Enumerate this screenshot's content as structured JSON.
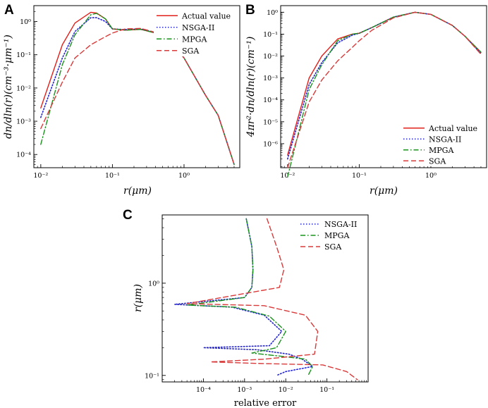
{
  "chart_data": [
    {
      "panel": "A",
      "type": "line",
      "xscale": "log",
      "yscale": "log",
      "xlim": [
        0.008,
        6
      ],
      "ylim": [
        4e-05,
        3
      ],
      "xlabel": "r(μm)",
      "ylabel": "dn/dln(r)(cm⁻³·μm⁻¹)",
      "xticks": [
        {
          "v": 0.01,
          "label": "10⁻²"
        },
        {
          "v": 0.1,
          "label": "10⁻¹"
        },
        {
          "v": 1,
          "label": "10⁰"
        }
      ],
      "yticks": [
        {
          "v": 0.0001,
          "label": "10⁻⁴"
        },
        {
          "v": 0.001,
          "label": "10⁻³"
        },
        {
          "v": 0.01,
          "label": "10⁻²"
        },
        {
          "v": 0.1,
          "label": "10⁻¹"
        },
        {
          "v": 1,
          "label": "10⁰"
        }
      ],
      "legend_position": "top-right",
      "series": [
        {
          "name": "Actual value",
          "color": "#e0201b",
          "dash": "solid",
          "x": [
            0.01,
            0.02,
            0.03,
            0.05,
            0.06,
            0.08,
            0.1,
            0.15,
            0.25,
            0.4,
            0.7,
            1.0,
            2.0,
            3.0,
            5.0
          ],
          "y": [
            0.0025,
            0.2,
            0.9,
            1.9,
            1.8,
            1.2,
            0.6,
            0.55,
            0.58,
            0.45,
            0.2,
            0.08,
            0.006,
            0.0015,
            5e-05
          ]
        },
        {
          "name": "NSGA-II",
          "color": "#2323d6",
          "dash": "dotted",
          "x": [
            0.01,
            0.02,
            0.03,
            0.05,
            0.06,
            0.08,
            0.1,
            0.15,
            0.25,
            0.4,
            0.7,
            1.0,
            2.0,
            3.0,
            5.0
          ],
          "y": [
            0.0013,
            0.08,
            0.5,
            1.3,
            1.3,
            1.0,
            0.6,
            0.57,
            0.6,
            0.46,
            0.2,
            0.08,
            0.006,
            0.0015,
            5e-05
          ]
        },
        {
          "name": "MPGA",
          "color": "#18921c",
          "dash": "dashdot",
          "x": [
            0.01,
            0.02,
            0.03,
            0.05,
            0.06,
            0.08,
            0.1,
            0.15,
            0.25,
            0.4,
            0.7,
            1.0,
            2.0,
            3.0,
            5.0
          ],
          "y": [
            0.0002,
            0.05,
            0.4,
            1.6,
            1.75,
            1.2,
            0.6,
            0.55,
            0.58,
            0.45,
            0.2,
            0.08,
            0.006,
            0.0015,
            5e-05
          ]
        },
        {
          "name": "SGA",
          "color": "#d83a3a",
          "dash": "dashed",
          "x": [
            0.01,
            0.02,
            0.03,
            0.05,
            0.07,
            0.1,
            0.15,
            0.25,
            0.4,
            0.7,
            1.0,
            2.0,
            3.0,
            5.0
          ],
          "y": [
            0.0006,
            0.015,
            0.08,
            0.2,
            0.3,
            0.45,
            0.6,
            0.62,
            0.47,
            0.2,
            0.08,
            0.006,
            0.0015,
            5e-05
          ]
        }
      ]
    },
    {
      "panel": "B",
      "type": "line",
      "xscale": "log",
      "yscale": "log",
      "xlim": [
        0.008,
        6
      ],
      "ylim": [
        8e-08,
        2
      ],
      "xlabel": "r(μm)",
      "ylabel": "4πr²·dn/dln(r)(cm⁻¹)",
      "xticks": [
        {
          "v": 0.01,
          "label": "10⁻²"
        },
        {
          "v": 0.1,
          "label": "10⁻¹"
        },
        {
          "v": 1,
          "label": "10⁰"
        }
      ],
      "yticks": [
        {
          "v": 1e-06,
          "label": "10⁻⁶"
        },
        {
          "v": 1e-05,
          "label": "10⁻⁵"
        },
        {
          "v": 0.0001,
          "label": "10⁻⁴"
        },
        {
          "v": 0.001,
          "label": "10⁻³"
        },
        {
          "v": 0.01,
          "label": "10⁻²"
        },
        {
          "v": 0.1,
          "label": "10⁻¹"
        },
        {
          "v": 1,
          "label": "10⁰"
        }
      ],
      "legend_position": "bottom-right",
      "series": [
        {
          "name": "Actual value",
          "color": "#e0201b",
          "dash": "solid",
          "x": [
            0.01,
            0.02,
            0.03,
            0.05,
            0.08,
            0.1,
            0.15,
            0.3,
            0.6,
            1.0,
            2.0,
            3.0,
            5.0
          ],
          "y": [
            3e-07,
            0.001,
            0.01,
            0.06,
            0.1,
            0.11,
            0.2,
            0.6,
            1.0,
            0.8,
            0.25,
            0.08,
            0.015
          ]
        },
        {
          "name": "NSGA-II",
          "color": "#2323d6",
          "dash": "dotted",
          "x": [
            0.01,
            0.02,
            0.03,
            0.05,
            0.08,
            0.1,
            0.15,
            0.3,
            0.6,
            1.0,
            2.0,
            3.0,
            5.0
          ],
          "y": [
            2e-07,
            0.0005,
            0.005,
            0.04,
            0.09,
            0.11,
            0.2,
            0.6,
            1.0,
            0.8,
            0.25,
            0.08,
            0.013
          ]
        },
        {
          "name": "MPGA",
          "color": "#18921c",
          "dash": "dashdot",
          "x": [
            0.01,
            0.02,
            0.03,
            0.05,
            0.08,
            0.1,
            0.15,
            0.3,
            0.6,
            1.0,
            2.0,
            3.0,
            5.0
          ],
          "y": [
            3e-08,
            0.0003,
            0.004,
            0.05,
            0.1,
            0.11,
            0.2,
            0.6,
            1.0,
            0.8,
            0.25,
            0.08,
            0.015
          ]
        },
        {
          "name": "SGA",
          "color": "#d83a3a",
          "dash": "dashed",
          "x": [
            0.01,
            0.02,
            0.03,
            0.05,
            0.08,
            0.1,
            0.15,
            0.3,
            0.6,
            1.0,
            2.0,
            3.0,
            5.0
          ],
          "y": [
            8e-08,
            8e-05,
            0.0008,
            0.006,
            0.025,
            0.05,
            0.15,
            0.55,
            1.0,
            0.8,
            0.25,
            0.08,
            0.012
          ]
        }
      ]
    },
    {
      "panel": "C",
      "type": "line",
      "xscale": "log",
      "yscale": "log",
      "xlim": [
        1e-05,
        1
      ],
      "ylim": [
        0.085,
        5.5
      ],
      "xlabel": "relative error",
      "ylabel": "r(μm)",
      "xticks": [
        {
          "v": 0.0001,
          "label": "10⁻⁴"
        },
        {
          "v": 0.001,
          "label": "10⁻³"
        },
        {
          "v": 0.01,
          "label": "10⁻²"
        },
        {
          "v": 0.1,
          "label": "10⁻¹"
        }
      ],
      "yticks": [
        {
          "v": 0.1,
          "label": "10⁻¹"
        },
        {
          "v": 1,
          "label": "10⁰"
        }
      ],
      "legend_position": "top-right",
      "series": [
        {
          "name": "NSGA-II",
          "color": "#2323d6",
          "dash": "dotted",
          "x": [
            0.0011,
            0.0015,
            0.0016,
            0.0015,
            0.001,
            2e-05,
            0.0005,
            0.003,
            0.008,
            0.004,
            0.0001,
            0.002,
            0.012,
            0.025,
            0.045,
            0.01,
            0.006
          ],
          "y": [
            5.0,
            2.5,
            1.4,
            0.9,
            0.7,
            0.59,
            0.55,
            0.45,
            0.3,
            0.21,
            0.2,
            0.19,
            0.17,
            0.15,
            0.125,
            0.11,
            0.1
          ]
        },
        {
          "name": "MPGA",
          "color": "#18921c",
          "dash": "dashdot",
          "x": [
            0.0011,
            0.0015,
            0.0016,
            0.0015,
            0.001,
            4e-05,
            0.0006,
            0.004,
            0.01,
            0.006,
            0.0015,
            0.009,
            0.03,
            0.045,
            0.035
          ],
          "y": [
            5.0,
            2.5,
            1.4,
            0.9,
            0.7,
            0.58,
            0.55,
            0.44,
            0.3,
            0.2,
            0.175,
            0.16,
            0.15,
            0.125,
            0.1
          ]
        },
        {
          "name": "SGA",
          "color": "#d83a3a",
          "dash": "dashed",
          "x": [
            0.0035,
            0.006,
            0.009,
            0.007,
            4e-05,
            0.003,
            0.03,
            0.06,
            0.05,
            0.003,
            0.00015,
            0.002,
            0.08,
            0.3,
            0.55
          ],
          "y": [
            5.0,
            2.5,
            1.4,
            0.9,
            0.6,
            0.57,
            0.45,
            0.3,
            0.17,
            0.15,
            0.14,
            0.135,
            0.13,
            0.11,
            0.09
          ]
        }
      ]
    }
  ]
}
